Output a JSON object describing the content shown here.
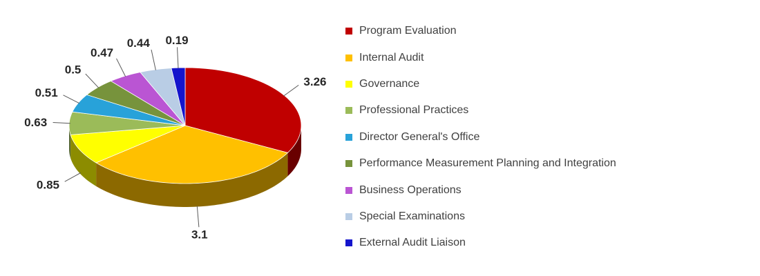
{
  "page": {
    "background": "#FFFFFF"
  },
  "chart_data": {
    "type": "pie",
    "effect": "3d",
    "title": "",
    "start_angle_deg": 0,
    "direction": "clockwise",
    "legend_position": "right",
    "categories": [
      "Program Evaluation",
      "Internal Audit",
      "Governance",
      "Professional Practices",
      "Director General's Office",
      "Performance Measurement Planning and Integration",
      "Business Operations",
      "Special Examinations",
      "External Audit Liaison"
    ],
    "values": [
      3.26,
      3.1,
      0.85,
      0.63,
      0.51,
      0.5,
      0.47,
      0.44,
      0.19
    ],
    "labels": [
      "3.26",
      "3.1",
      "0.85",
      "0.63",
      "0.51",
      "0.5",
      "0.47",
      "0.44",
      "0.19"
    ],
    "colors": [
      "#C00000",
      "#FFC000",
      "#FFFF00",
      "#9BBB59",
      "#28A2D9",
      "#77933C",
      "#BA55D3",
      "#B9CDE5",
      "#1414CC"
    ],
    "label_color": "#262626",
    "legend_text_color": "#404040"
  }
}
